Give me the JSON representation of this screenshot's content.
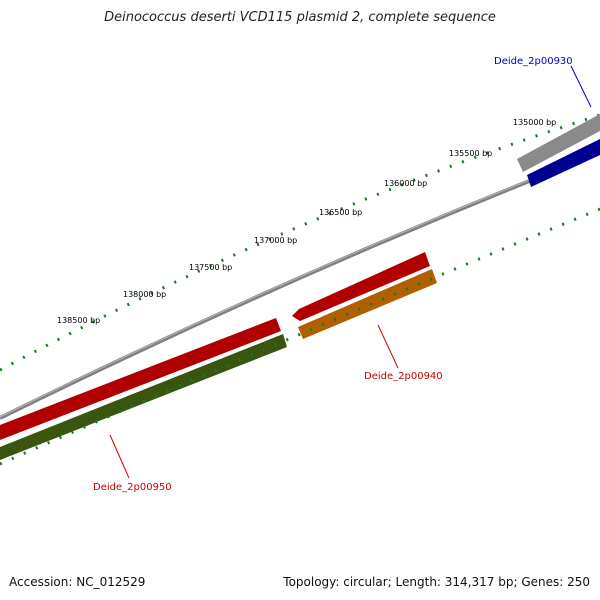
{
  "title": "Deinococcus deserti VCD115 plasmid 2, complete sequence",
  "footer": {
    "accession_label": "Accession: NC_012529",
    "topology_label": "Topology: circular; Length: 314,317 bp; Genes: 250"
  },
  "colors": {
    "backbone": "#808080",
    "tick": "#1a7a1a",
    "tick_label": "#000000",
    "gene_blue": "#0000e6",
    "gene_gray": "#c0c0c0",
    "gene_red": "#ff0000",
    "gene_orange": "#ff8c00",
    "gene_olive": "#5a7f1a",
    "label_red": "#cc0000",
    "label_blue": "#0000cc"
  },
  "tick_labels": [
    "135000 bp",
    "135500 bp",
    "136000 bp",
    "136500 bp",
    "137000 bp",
    "137500 bp",
    "138000 bp",
    "138500 bp"
  ],
  "genes": [
    {
      "name": "Deide_2p00930",
      "color": "gene_blue",
      "label_color": "label_blue"
    },
    {
      "name": "Deide_2p00940",
      "color": "gene_orange",
      "label_color": "label_red"
    },
    {
      "name": "Deide_2p00950",
      "color": "gene_olive",
      "label_color": "label_red"
    }
  ]
}
